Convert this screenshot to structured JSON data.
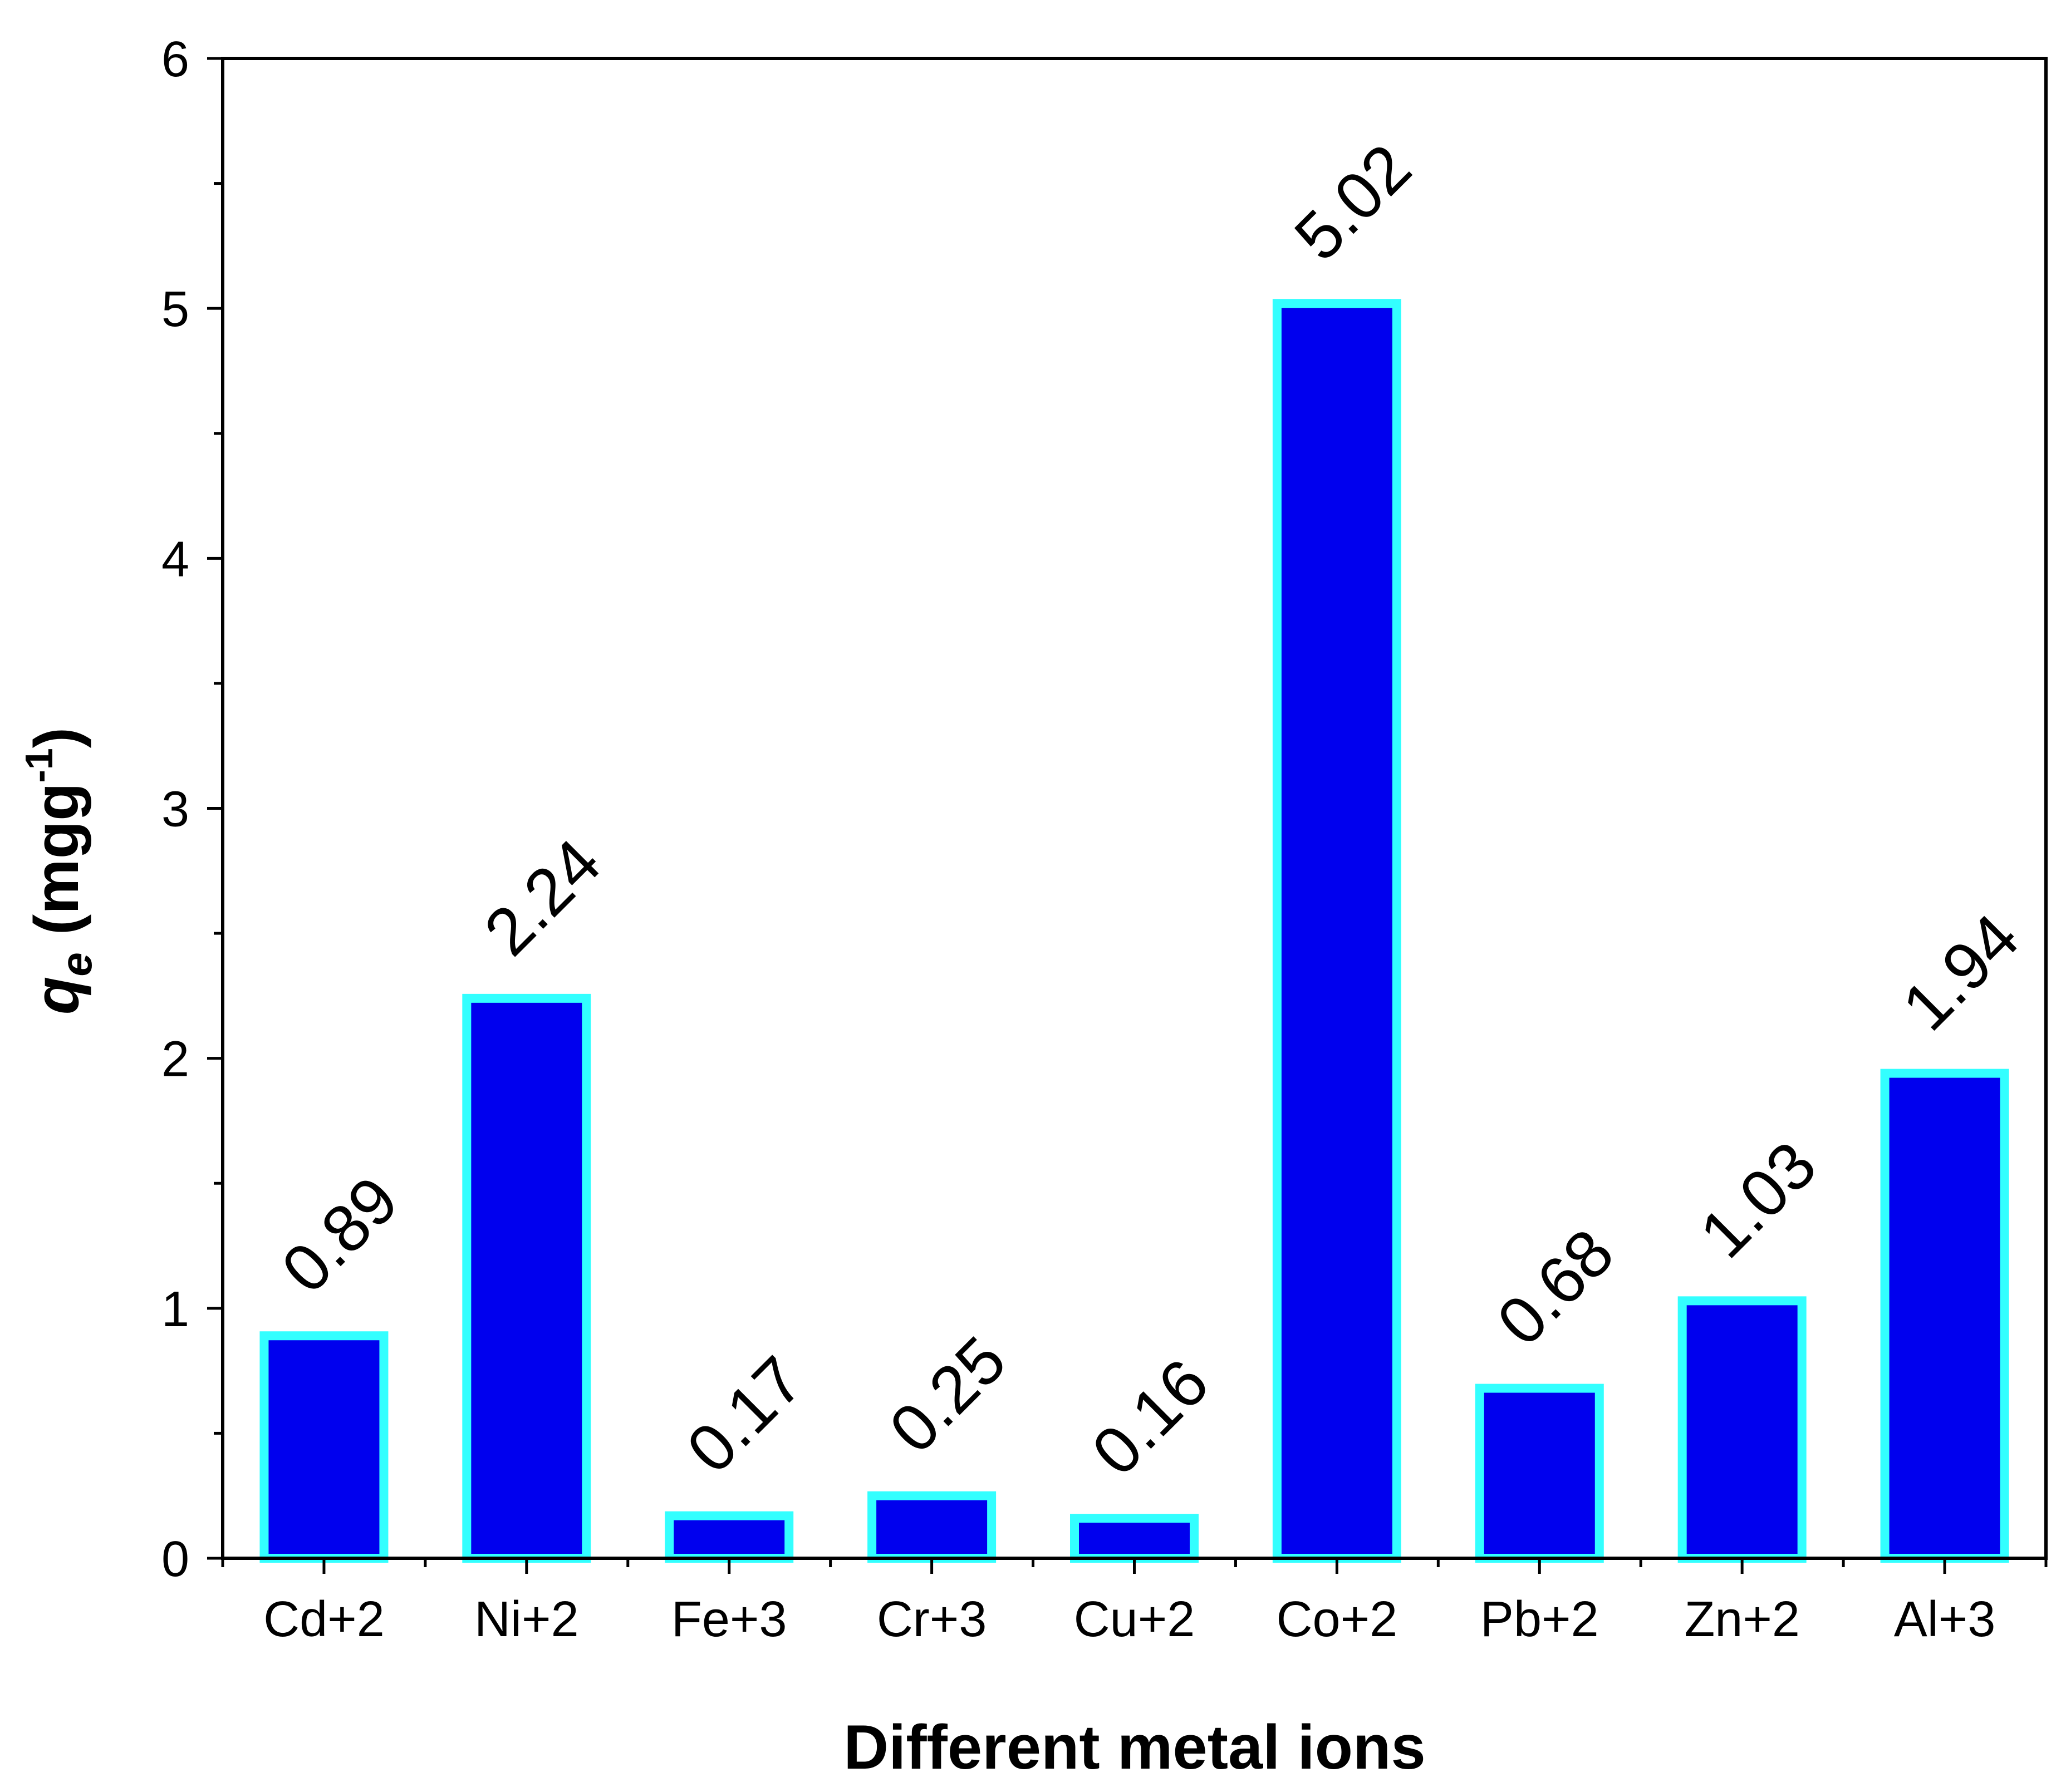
{
  "chart_data": {
    "type": "bar",
    "categories": [
      "Cd+2",
      "Ni+2",
      "Fe+3",
      "Cr+3",
      "Cu+2",
      "Co+2",
      "Pb+2",
      "Zn+2",
      "Al+3"
    ],
    "values": [
      0.89,
      2.24,
      0.17,
      0.25,
      0.16,
      5.02,
      0.68,
      1.03,
      1.94
    ],
    "value_labels": [
      "0.89",
      "2.24",
      "0.17",
      "0.25",
      "0.16",
      "5.02",
      "0.68",
      "1.03",
      "1.94"
    ],
    "title": "",
    "xlabel": "Different metal ions",
    "ylabel": {
      "symbol": "q",
      "subscript": "e",
      "unit_prefix": " (mgg",
      "unit_exponent": "-1",
      "unit_suffix": ")"
    },
    "ylim": [
      0,
      6
    ],
    "yticks": [
      "0",
      "1",
      "2",
      "3",
      "4",
      "5",
      "6"
    ],
    "grid": false,
    "legend": "none",
    "colors": {
      "bar_fill": "#0000EE",
      "bar_edge": "#33FFFF",
      "axis": "#000000"
    }
  }
}
